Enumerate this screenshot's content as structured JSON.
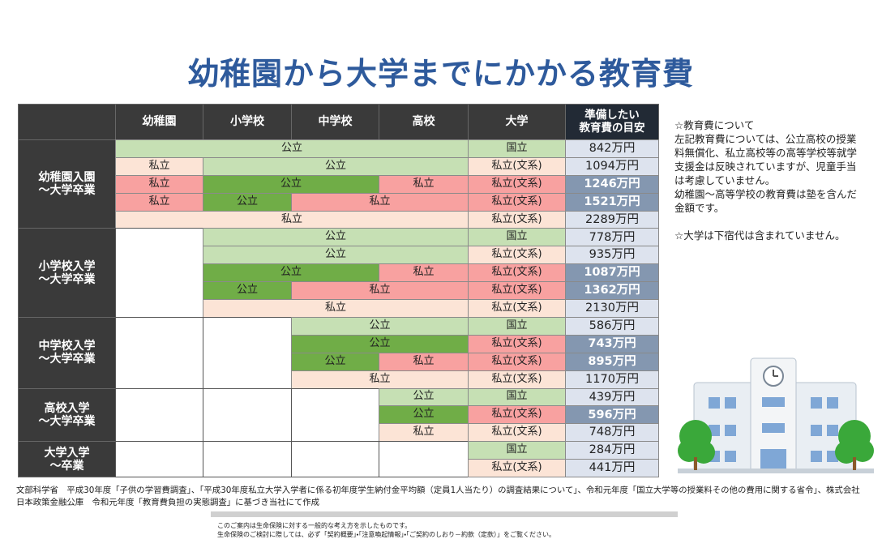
{
  "header": {
    "title": "幼稚園から大学までにかかる教育費"
  },
  "table": {
    "headers": [
      "幼稚園",
      "小学校",
      "中学校",
      "高校",
      "大学",
      "準備したい\n教育費の目安"
    ],
    "groups": [
      {
        "label": "幼稚園入園\n～大学卒業",
        "rows": [
          {
            "cells": [
              {
                "text": "公立",
                "span": 4,
                "color": "#c6e0b4"
              },
              {
                "text": "国立",
                "span": 1,
                "color": "#c6e0b4"
              }
            ],
            "total": "842万円",
            "emphasis": false
          },
          {
            "cells": [
              {
                "text": "私立",
                "span": 1,
                "color": "#fce4d6"
              },
              {
                "text": "公立",
                "span": 3,
                "color": "#c6e0b4"
              },
              {
                "text": "私立(文系)",
                "span": 1,
                "color": "#fce4d6"
              }
            ],
            "total": "1094万円",
            "emphasis": false
          },
          {
            "cells": [
              {
                "text": "私立",
                "span": 1,
                "color": "#f8a1a0"
              },
              {
                "text": "公立",
                "span": 2,
                "color": "#70ad47"
              },
              {
                "text": "私立",
                "span": 1,
                "color": "#f8a1a0"
              },
              {
                "text": "私立(文系)",
                "span": 1,
                "color": "#f8a1a0"
              }
            ],
            "total": "1246万円",
            "emphasis": true
          },
          {
            "cells": [
              {
                "text": "私立",
                "span": 1,
                "color": "#f8a1a0"
              },
              {
                "text": "公立",
                "span": 1,
                "color": "#70ad47"
              },
              {
                "text": "私立",
                "span": 2,
                "color": "#f8a1a0"
              },
              {
                "text": "私立(文系)",
                "span": 1,
                "color": "#f8a1a0"
              }
            ],
            "total": "1521万円",
            "emphasis": true
          },
          {
            "cells": [
              {
                "text": "私立",
                "span": 4,
                "color": "#fce4d6"
              },
              {
                "text": "私立(文系)",
                "span": 1,
                "color": "#fce4d6"
              }
            ],
            "total": "2289万円",
            "emphasis": false
          }
        ]
      },
      {
        "label": "小学校入学\n～大学卒業",
        "rows": [
          {
            "cells": [
              {
                "text": "公立",
                "span": 3,
                "color": "#c6e0b4"
              },
              {
                "text": "国立",
                "span": 1,
                "color": "#c6e0b4"
              }
            ],
            "total": "778万円",
            "emphasis": false
          },
          {
            "cells": [
              {
                "text": "公立",
                "span": 3,
                "color": "#c6e0b4"
              },
              {
                "text": "私立(文系)",
                "span": 1,
                "color": "#fce4d6"
              }
            ],
            "total": "935万円",
            "emphasis": false
          },
          {
            "cells": [
              {
                "text": "公立",
                "span": 2,
                "color": "#70ad47"
              },
              {
                "text": "私立",
                "span": 1,
                "color": "#f8a1a0"
              },
              {
                "text": "私立(文系)",
                "span": 1,
                "color": "#f8a1a0"
              }
            ],
            "total": "1087万円",
            "emphasis": true
          },
          {
            "cells": [
              {
                "text": "公立",
                "span": 1,
                "color": "#70ad47"
              },
              {
                "text": "私立",
                "span": 2,
                "color": "#f8a1a0"
              },
              {
                "text": "私立(文系)",
                "span": 1,
                "color": "#f8a1a0"
              }
            ],
            "total": "1362万円",
            "emphasis": true
          },
          {
            "cells": [
              {
                "text": "私立",
                "span": 3,
                "color": "#fce4d6"
              },
              {
                "text": "私立(文系)",
                "span": 1,
                "color": "#fce4d6"
              }
            ],
            "total": "2130万円",
            "emphasis": false
          }
        ]
      },
      {
        "label": "中学校入学\n～大学卒業",
        "rows": [
          {
            "cells": [
              {
                "text": "公立",
                "span": 2,
                "color": "#c6e0b4"
              },
              {
                "text": "国立",
                "span": 1,
                "color": "#c6e0b4"
              }
            ],
            "total": "586万円",
            "emphasis": false
          },
          {
            "cells": [
              {
                "text": "公立",
                "span": 2,
                "color": "#70ad47"
              },
              {
                "text": "私立(文系)",
                "span": 1,
                "color": "#f8a1a0"
              }
            ],
            "total": "743万円",
            "emphasis": true
          },
          {
            "cells": [
              {
                "text": "公立",
                "span": 1,
                "color": "#70ad47"
              },
              {
                "text": "私立",
                "span": 1,
                "color": "#f8a1a0"
              },
              {
                "text": "私立(文系)",
                "span": 1,
                "color": "#f8a1a0"
              }
            ],
            "total": "895万円",
            "emphasis": true
          },
          {
            "cells": [
              {
                "text": "私立",
                "span": 2,
                "color": "#fce4d6"
              },
              {
                "text": "私立(文系)",
                "span": 1,
                "color": "#fce4d6"
              }
            ],
            "total": "1170万円",
            "emphasis": false
          }
        ]
      },
      {
        "label": "高校入学\n～大学卒業",
        "rows": [
          {
            "cells": [
              {
                "text": "公立",
                "span": 1,
                "color": "#c6e0b4"
              },
              {
                "text": "国立",
                "span": 1,
                "color": "#c6e0b4"
              }
            ],
            "total": "439万円",
            "emphasis": false
          },
          {
            "cells": [
              {
                "text": "公立",
                "span": 1,
                "color": "#70ad47"
              },
              {
                "text": "私立(文系)",
                "span": 1,
                "color": "#f8a1a0"
              }
            ],
            "total": "596万円",
            "emphasis": true
          },
          {
            "cells": [
              {
                "text": "私立",
                "span": 1,
                "color": "#fce4d6"
              },
              {
                "text": "私立(文系)",
                "span": 1,
                "color": "#fce4d6"
              }
            ],
            "total": "748万円",
            "emphasis": false
          }
        ]
      },
      {
        "label": "大学入学\n～卒業",
        "rows": [
          {
            "cells": [
              {
                "text": "国立",
                "span": 1,
                "color": "#c6e0b4"
              }
            ],
            "total": "284万円",
            "emphasis": false
          },
          {
            "cells": [
              {
                "text": "私立(文系)",
                "span": 1,
                "color": "#fce4d6"
              }
            ],
            "total": "441万円",
            "emphasis": false
          }
        ]
      }
    ]
  },
  "notes": [
    "☆教育費について",
    "左記教育費については、公立高校の授業料無償化、私立高校等の高等学校等就学支援金は反映されていますが、児童手当は考慮していません。",
    "幼稚園～高等学校の教育費は塾を含んだ金額です。",
    "☆大学は下宿代は含まれていません。"
  ],
  "footer": {
    "source": "文部科学省　平成30年度「子供の学習費調査」、「平成30年度私立大学入学者に係る初年度学生納付金平均額（定員1人当たり）の調査結果について」、令和元年度「国立大学等の授業料その他の費用に関する省令」、株式会社日本政策金融公庫　令和元年度「教育費負担の実態調査」に基づき当社にて作成",
    "disclaimer": [
      "このご案内は生命保険に対する一般的な考え方を示したものです。",
      "生命保険のご検討に際しては、必ず「契約概要」・「注意喚起情報」・「ご契約のしおり－約款（定款）」をご覧ください。"
    ]
  }
}
